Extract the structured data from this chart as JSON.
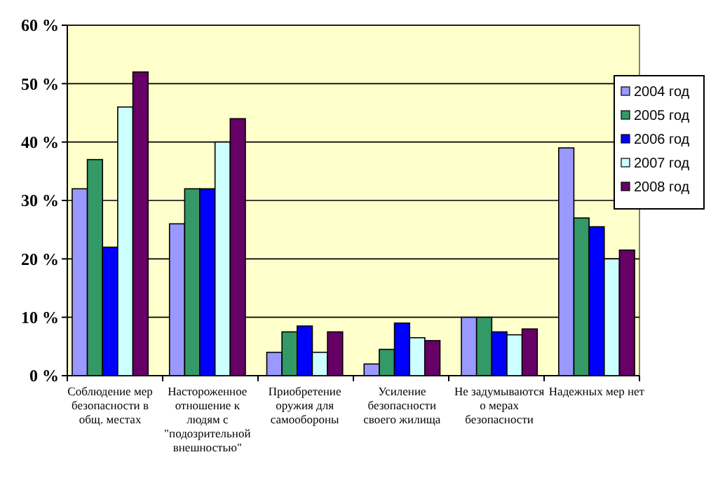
{
  "chart_data": {
    "type": "bar",
    "categories": [
      "Соблюдение мер безопасности в общ. местах",
      "Настороженное отношение к людям с \"подозрительной внешностью\"",
      "Приобретение оружия для самообороны",
      "Усиление безопасности своего жилища",
      "Не задумываются о мерах безопасности",
      "Надежных мер нет"
    ],
    "series": [
      {
        "name": "2004 год",
        "color": "#9999ff",
        "values": [
          32,
          26,
          4,
          2,
          10,
          39
        ]
      },
      {
        "name": "2005 год",
        "color": "#339966",
        "values": [
          37,
          32,
          7.5,
          4.5,
          10,
          27
        ]
      },
      {
        "name": "2006 год",
        "color": "#0000ff",
        "values": [
          22,
          32,
          8.5,
          9,
          7.5,
          25.5
        ]
      },
      {
        "name": "2007 год",
        "color": "#ccffff",
        "values": [
          46,
          40,
          4,
          6.5,
          7,
          20
        ]
      },
      {
        "name": "2008 год",
        "color": "#660066",
        "values": [
          52,
          44,
          7.5,
          6,
          8,
          21.5
        ]
      }
    ],
    "ylim": [
      0,
      60
    ],
    "yticks": [
      {
        "value": 0,
        "label": "0 %"
      },
      {
        "value": 10,
        "label": "10 %"
      },
      {
        "value": 20,
        "label": "20 %"
      },
      {
        "value": 30,
        "label": "30 %"
      },
      {
        "value": 40,
        "label": "40 %"
      },
      {
        "value": 50,
        "label": "50 %"
      },
      {
        "value": 60,
        "label": "60 %"
      }
    ],
    "grid": "y",
    "legend": "right"
  }
}
